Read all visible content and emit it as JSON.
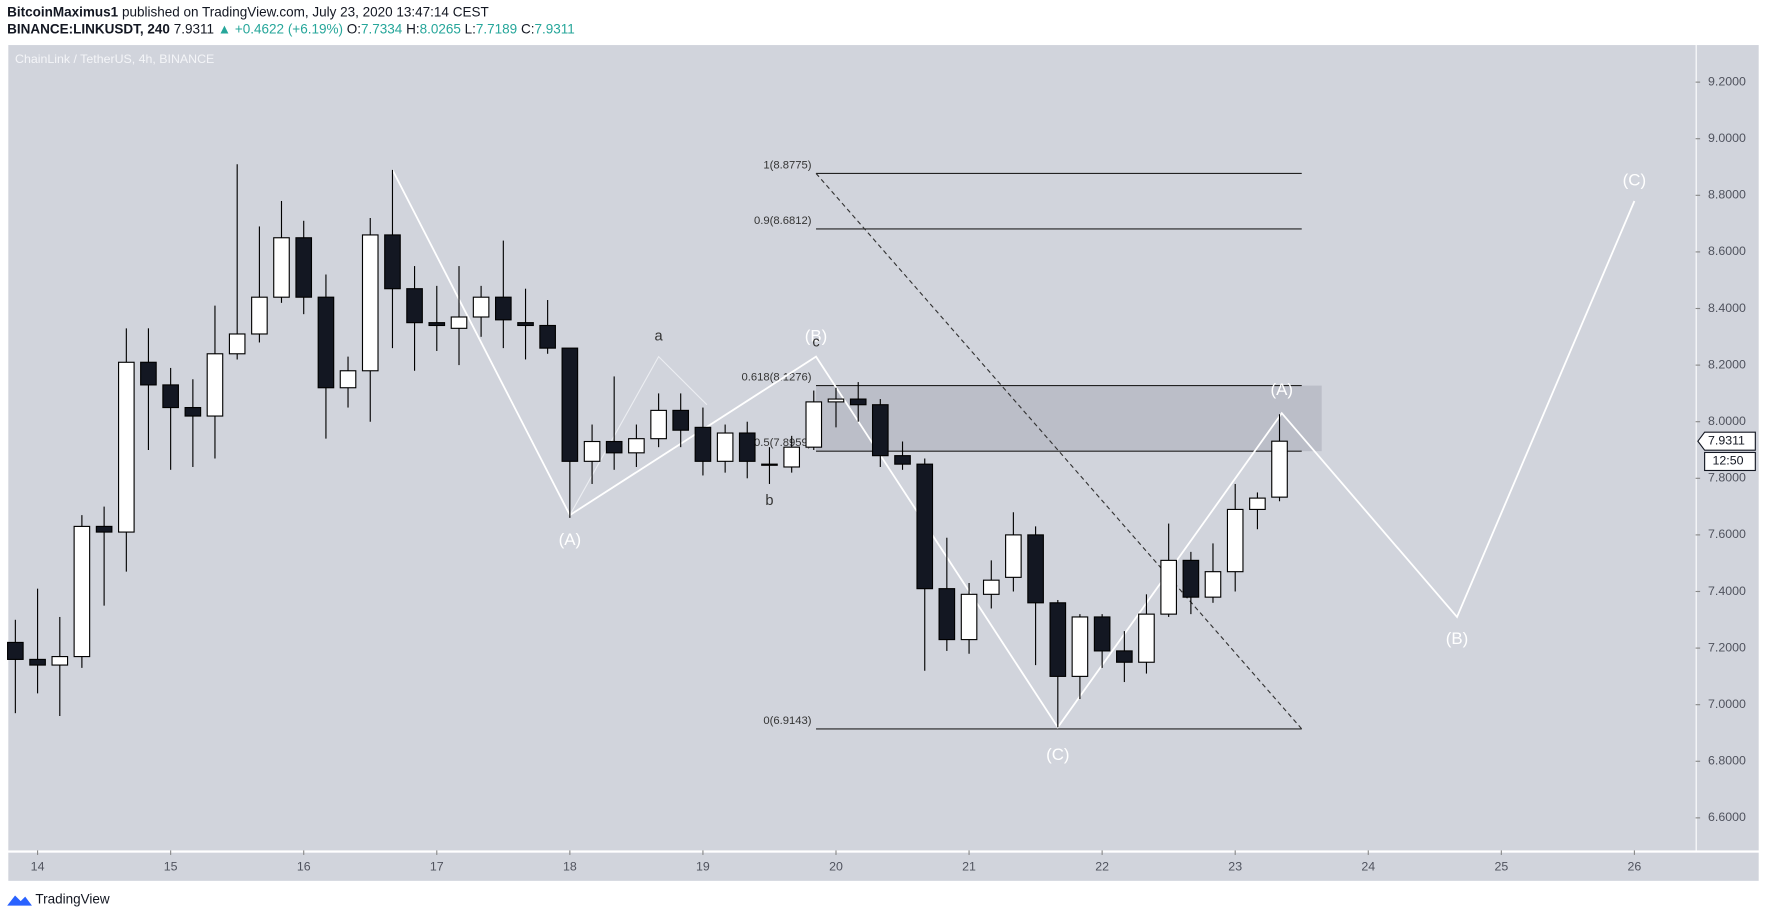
{
  "header": {
    "author": "BitcoinMaximus1",
    "published": "published on TradingView.com, July 23, 2020 13:47:14 CEST",
    "symbol": "BINANCE:LINKUSDT, 240",
    "last": "7.9311",
    "change": "▲ +0.4622 (+6.19%)",
    "ohlc": [
      {
        "label": "O:",
        "value": "7.7334"
      },
      {
        "label": "H:",
        "value": "8.0265"
      },
      {
        "label": "L:",
        "value": "7.7189"
      },
      {
        "label": "C:",
        "value": "7.9311"
      }
    ]
  },
  "chart_data": {
    "type": "candlestick",
    "title": "ChainLink / TetherUS, 4h, BINANCE",
    "up_color": "#ffffff",
    "down_color": "#131722",
    "outline_color": "#000000",
    "x": [
      13.833,
      14,
      14.167,
      14.333,
      14.5,
      14.667,
      14.833,
      15,
      15.167,
      15.333,
      15.5,
      15.667,
      15.833,
      16,
      16.167,
      16.333,
      16.5,
      16.667,
      16.833,
      17,
      17.167,
      17.333,
      17.5,
      17.667,
      17.833,
      18,
      18.167,
      18.333,
      18.5,
      18.667,
      18.833,
      19,
      19.167,
      19.333,
      19.5,
      19.667,
      19.833,
      20,
      20.167,
      20.333,
      20.5,
      20.667,
      20.833,
      21,
      21.167,
      21.333,
      21.5,
      21.667,
      21.833,
      22,
      22.167,
      22.333,
      22.5,
      22.667,
      22.833,
      23,
      23.167,
      23.333
    ],
    "open": [
      7.22,
      7.16,
      7.14,
      7.17,
      7.63,
      7.61,
      8.21,
      8.13,
      8.05,
      8.02,
      8.24,
      8.31,
      8.44,
      8.65,
      8.44,
      8.12,
      8.18,
      8.66,
      8.47,
      8.35,
      8.33,
      8.37,
      8.44,
      8.35,
      8.34,
      8.26,
      7.86,
      7.93,
      7.89,
      7.94,
      8.04,
      7.98,
      7.86,
      7.96,
      7.85,
      7.84,
      7.91,
      8.07,
      8.08,
      8.06,
      7.88,
      7.85,
      7.41,
      7.23,
      7.39,
      7.45,
      7.6,
      7.36,
      7.1,
      7.31,
      7.19,
      7.15,
      7.32,
      7.51,
      7.38,
      7.47,
      7.69,
      7.7334
    ],
    "high": [
      7.3,
      7.41,
      7.31,
      7.67,
      7.7,
      8.33,
      8.33,
      8.19,
      8.15,
      8.41,
      8.91,
      8.69,
      8.78,
      8.71,
      8.52,
      8.23,
      8.72,
      8.89,
      8.55,
      8.48,
      8.55,
      8.48,
      8.64,
      8.47,
      8.43,
      8.26,
      7.99,
      8.16,
      7.99,
      8.1,
      8.1,
      8.05,
      7.99,
      8.0,
      7.91,
      7.95,
      8.11,
      8.12,
      8.14,
      8.08,
      7.93,
      7.87,
      7.59,
      7.43,
      7.51,
      7.68,
      7.63,
      7.37,
      7.32,
      7.32,
      7.26,
      7.39,
      7.64,
      7.54,
      7.57,
      7.78,
      7.75,
      8.0265
    ],
    "low": [
      6.97,
      7.04,
      6.96,
      7.13,
      7.35,
      7.47,
      7.9,
      7.83,
      7.84,
      7.87,
      8.22,
      8.28,
      8.42,
      8.38,
      7.94,
      8.05,
      8.0,
      8.26,
      8.18,
      8.25,
      8.2,
      8.3,
      8.26,
      8.22,
      8.24,
      7.66,
      7.78,
      7.83,
      7.84,
      7.91,
      7.91,
      7.81,
      7.82,
      7.8,
      7.78,
      7.82,
      7.9,
      7.98,
      8.0,
      7.84,
      7.83,
      7.12,
      7.19,
      7.18,
      7.34,
      7.4,
      7.14,
      6.92,
      7.02,
      7.13,
      7.08,
      7.11,
      7.31,
      7.32,
      7.36,
      7.4,
      7.62,
      7.7189
    ],
    "close": [
      7.16,
      7.14,
      7.17,
      7.63,
      7.61,
      8.21,
      8.13,
      8.05,
      8.02,
      8.24,
      8.31,
      8.44,
      8.65,
      8.44,
      8.12,
      8.18,
      8.66,
      8.47,
      8.35,
      8.34,
      8.37,
      8.44,
      8.36,
      8.34,
      8.26,
      7.86,
      7.93,
      7.89,
      7.94,
      8.04,
      7.97,
      7.86,
      7.96,
      7.86,
      7.85,
      7.91,
      8.07,
      8.08,
      8.06,
      7.88,
      7.85,
      7.41,
      7.23,
      7.39,
      7.44,
      7.6,
      7.36,
      7.1,
      7.31,
      7.19,
      7.15,
      7.32,
      7.51,
      7.38,
      7.47,
      7.69,
      7.73,
      7.9311
    ],
    "xlim": [
      13.78,
      26.46
    ],
    "ylim": [
      6.485,
      9.331
    ],
    "xticks": [
      14,
      15,
      16,
      17,
      18,
      19,
      20,
      21,
      22,
      23,
      24,
      25,
      26
    ],
    "yticks": [
      {
        "value": 6.6,
        "label": "6.6000"
      },
      {
        "value": 6.8,
        "label": "6.8000"
      },
      {
        "value": 7.0,
        "label": "7.0000"
      },
      {
        "value": 7.2,
        "label": "7.2000"
      },
      {
        "value": 7.4,
        "label": "7.4000"
      },
      {
        "value": 7.6,
        "label": "7.6000"
      },
      {
        "value": 7.8,
        "label": "7.8000"
      },
      {
        "value": 8.0,
        "label": "8.0000"
      },
      {
        "value": 8.2,
        "label": "8.2000"
      },
      {
        "value": 8.4,
        "label": "8.4000"
      },
      {
        "value": 8.6,
        "label": "8.6000"
      },
      {
        "value": 8.8,
        "label": "8.8000"
      },
      {
        "value": 9.0,
        "label": "9.0000"
      },
      {
        "value": 9.2,
        "label": "9.2000"
      }
    ],
    "fib": {
      "x": [
        19.85,
        23.5
      ],
      "zone_end_x": 23.65,
      "levels": [
        {
          "value": 8.8775,
          "label": "1(8.8775)"
        },
        {
          "value": 8.6812,
          "label": "0.9(8.6812)"
        },
        {
          "value": 8.1276,
          "label": "0.618(8.1276)"
        },
        {
          "value": 7.8959,
          "label": "0.5(7.8959)"
        },
        {
          "value": 6.9143,
          "label": "0(6.9143)"
        }
      ]
    },
    "waves": [
      {
        "color": "#ffffff",
        "x": [
          16.667,
          18.0,
          19.85,
          21.667,
          23.35,
          24.667,
          26.0
        ],
        "y": [
          8.89,
          7.67,
          8.23,
          6.92,
          8.03,
          7.31,
          8.78
        ]
      },
      {
        "color": "#eceef2",
        "x": [
          18.0,
          18.667,
          19.03
        ],
        "y": [
          7.67,
          8.23,
          8.06
        ]
      }
    ],
    "wave_labels": [
      {
        "text": "(A)",
        "x": 18.0,
        "y": 7.58,
        "color": "#ffffff"
      },
      {
        "text": "a",
        "x": 18.667,
        "y": 8.3,
        "color": "#333333"
      },
      {
        "text": "b",
        "x": 19.5,
        "y": 7.72,
        "color": "#333333"
      },
      {
        "text": "(B)",
        "x": 19.85,
        "y": 8.3,
        "color": "#ffffff"
      },
      {
        "text": "c",
        "x": 19.85,
        "y": 8.28,
        "color": "#333333"
      },
      {
        "text": "(C)",
        "x": 21.667,
        "y": 6.82,
        "color": "#ffffff"
      },
      {
        "text": "(A)",
        "x": 23.35,
        "y": 8.11,
        "color": "#ffffff"
      },
      {
        "text": "(B)",
        "x": 24.667,
        "y": 7.23,
        "color": "#ffffff"
      },
      {
        "text": "(C)",
        "x": 26.0,
        "y": 8.85,
        "color": "#ffffff"
      }
    ],
    "last_price": {
      "value": 7.9311,
      "label": "7.9311"
    },
    "countdown": "12:50"
  },
  "footer": {
    "brand": "TradingView"
  }
}
